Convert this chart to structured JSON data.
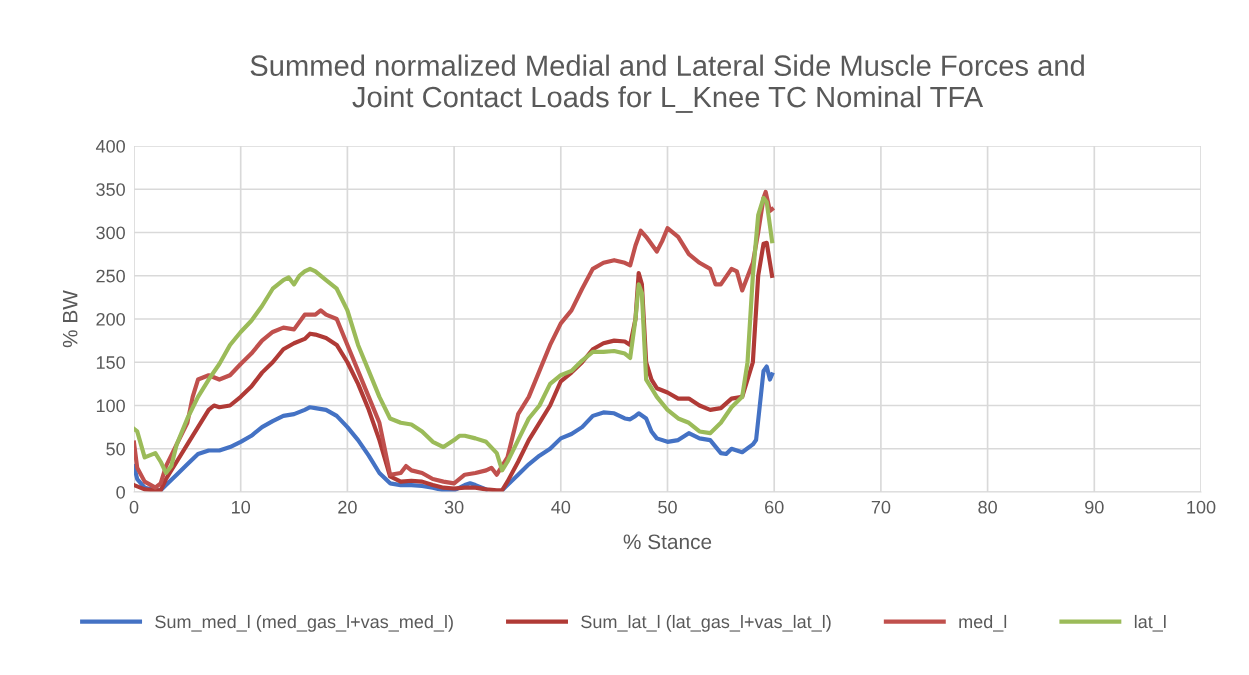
{
  "chart_data": {
    "type": "line",
    "title": "Summed normalized Medial and Lateral Side Muscle Forces and\nJoint Contact Loads for L_Knee TC Nominal TFA",
    "xlabel": "% Stance",
    "ylabel": "% BW",
    "xlim": [
      0,
      100
    ],
    "xticks": [
      0,
      10,
      20,
      30,
      40,
      50,
      60,
      70,
      80,
      90,
      100
    ],
    "ylim": [
      0,
      400
    ],
    "yticks": [
      0,
      50,
      100,
      150,
      200,
      250,
      300,
      350,
      400
    ],
    "grid": true,
    "legend": "bottom",
    "marker": "none",
    "line_style": "solid",
    "series": [
      {
        "name": "Sum_med_l (med_gas_l+vas_med_l)",
        "color": "#4472c4",
        "x": [
          0,
          0.3,
          1,
          2,
          2.5,
          3,
          4,
          5,
          6,
          7,
          8,
          9,
          10,
          11,
          12,
          13,
          14,
          15,
          16,
          16.5,
          17,
          18,
          19,
          20,
          21,
          22,
          23,
          24,
          25,
          26,
          27,
          28,
          29,
          30,
          31,
          31.5,
          32,
          33,
          34,
          34.5,
          35,
          36,
          37,
          38,
          39,
          40,
          41,
          42,
          43,
          44,
          45,
          46,
          46.5,
          47,
          47.3,
          48,
          48.5,
          49,
          50,
          51,
          52,
          53,
          54,
          55,
          55.5,
          56,
          57,
          58,
          58.3,
          59,
          59.3,
          59.6,
          59.8
        ],
        "values": [
          30,
          15,
          5,
          2,
          2,
          8,
          20,
          32,
          44,
          48,
          48,
          52,
          58,
          65,
          75,
          82,
          88,
          90,
          95,
          98,
          97,
          95,
          88,
          75,
          60,
          42,
          22,
          10,
          8,
          8,
          7,
          5,
          2,
          2,
          8,
          10,
          8,
          3,
          null,
          2,
          8,
          20,
          32,
          42,
          50,
          62,
          67,
          75,
          88,
          92,
          91,
          85,
          84,
          88,
          91,
          85,
          70,
          62,
          58,
          60,
          68,
          62,
          60,
          45,
          44,
          50,
          46,
          55,
          60,
          140,
          145,
          130,
          136
        ]
      },
      {
        "name": "Sum_lat_l (lat_gas_l+vas_lat_l)",
        "color": "#b03a36",
        "x": [
          0,
          1,
          2,
          2.5,
          3,
          4,
          5,
          6,
          7,
          7.5,
          8,
          9,
          10,
          11,
          12,
          13,
          14,
          15,
          16,
          16.5,
          17,
          18,
          19,
          20,
          21,
          22,
          23,
          24,
          25,
          26,
          27,
          28,
          29,
          30,
          31,
          32,
          33,
          34,
          34.5,
          35,
          36,
          37,
          38,
          39,
          40,
          41,
          42,
          43,
          44,
          45,
          46,
          46.5,
          47,
          47.3,
          47.6,
          48,
          48.5,
          49,
          50,
          51,
          52,
          53,
          54,
          55,
          56,
          57,
          58,
          58.5,
          59,
          59.3,
          59.8
        ],
        "values": [
          8,
          3,
          2,
          2,
          15,
          35,
          55,
          75,
          95,
          100,
          98,
          100,
          110,
          122,
          138,
          150,
          165,
          172,
          177,
          183,
          182,
          178,
          170,
          150,
          125,
          95,
          60,
          18,
          12,
          13,
          12,
          8,
          5,
          4,
          5,
          5,
          3,
          2,
          2,
          12,
          35,
          60,
          80,
          100,
          128,
          138,
          150,
          165,
          172,
          175,
          174,
          170,
          200,
          253,
          240,
          150,
          130,
          120,
          115,
          108,
          108,
          100,
          95,
          97,
          108,
          110,
          150,
          250,
          287,
          288,
          250
        ]
      },
      {
        "name": "med_l",
        "color": "#c0504d",
        "x": [
          0,
          0.3,
          1,
          2,
          2.5,
          3,
          4,
          5,
          5.5,
          6,
          7,
          8,
          9,
          10,
          11,
          12,
          13,
          14,
          15,
          16,
          17,
          17.5,
          18,
          19,
          20,
          21,
          22,
          23,
          24,
          25,
          25.5,
          26,
          27,
          28,
          29,
          30,
          31,
          32,
          33,
          33.5,
          34,
          35,
          36,
          37,
          38,
          39,
          40,
          41,
          42,
          43,
          44,
          45,
          46,
          46.5,
          47,
          47.5,
          48,
          49,
          49.5,
          50,
          51,
          52,
          53,
          54,
          54.5,
          55,
          56,
          56.5,
          57,
          58,
          58.5,
          59,
          59.2,
          59.6,
          59.8
        ],
        "values": [
          57,
          28,
          12,
          5,
          10,
          30,
          55,
          80,
          110,
          130,
          135,
          130,
          135,
          148,
          160,
          175,
          185,
          190,
          188,
          205,
          205,
          210,
          205,
          200,
          170,
          140,
          110,
          80,
          20,
          22,
          30,
          25,
          22,
          15,
          12,
          10,
          20,
          22,
          25,
          28,
          20,
          40,
          90,
          110,
          140,
          170,
          195,
          210,
          235,
          258,
          265,
          268,
          265,
          262,
          285,
          302,
          295,
          278,
          290,
          305,
          295,
          275,
          265,
          258,
          240,
          240,
          258,
          255,
          233,
          265,
          300,
          340,
          347,
          325,
          327
        ]
      },
      {
        "name": "lat_l",
        "color": "#9bbb59",
        "x": [
          0,
          0.3,
          1,
          2,
          2.5,
          3,
          3.5,
          4,
          5,
          6,
          7,
          8,
          9,
          10,
          11,
          12,
          13,
          14,
          14.5,
          15,
          15.5,
          16,
          16.5,
          17,
          18,
          19,
          20,
          21,
          22,
          23,
          24,
          25,
          26,
          27,
          28,
          29,
          30,
          30.5,
          31,
          32,
          33,
          34,
          34.5,
          35,
          36,
          37,
          38,
          39,
          40,
          41,
          42,
          43,
          44,
          45,
          46,
          46.5,
          47,
          47.3,
          47.6,
          48,
          48.5,
          49,
          50,
          51,
          52,
          53,
          54,
          55,
          56,
          57,
          57.5,
          58,
          58.5,
          59,
          59.3,
          59.8
        ],
        "values": [
          73,
          70,
          40,
          45,
          35,
          22,
          30,
          55,
          85,
          110,
          130,
          148,
          170,
          185,
          198,
          215,
          235,
          245,
          248,
          240,
          250,
          255,
          258,
          255,
          245,
          235,
          210,
          170,
          140,
          110,
          85,
          80,
          78,
          70,
          58,
          52,
          60,
          65,
          65,
          62,
          58,
          45,
          25,
          35,
          60,
          85,
          100,
          125,
          135,
          140,
          152,
          162,
          162,
          163,
          160,
          155,
          200,
          240,
          230,
          130,
          120,
          110,
          95,
          85,
          80,
          70,
          68,
          80,
          98,
          110,
          150,
          250,
          320,
          340,
          335,
          290
        ]
      }
    ]
  }
}
